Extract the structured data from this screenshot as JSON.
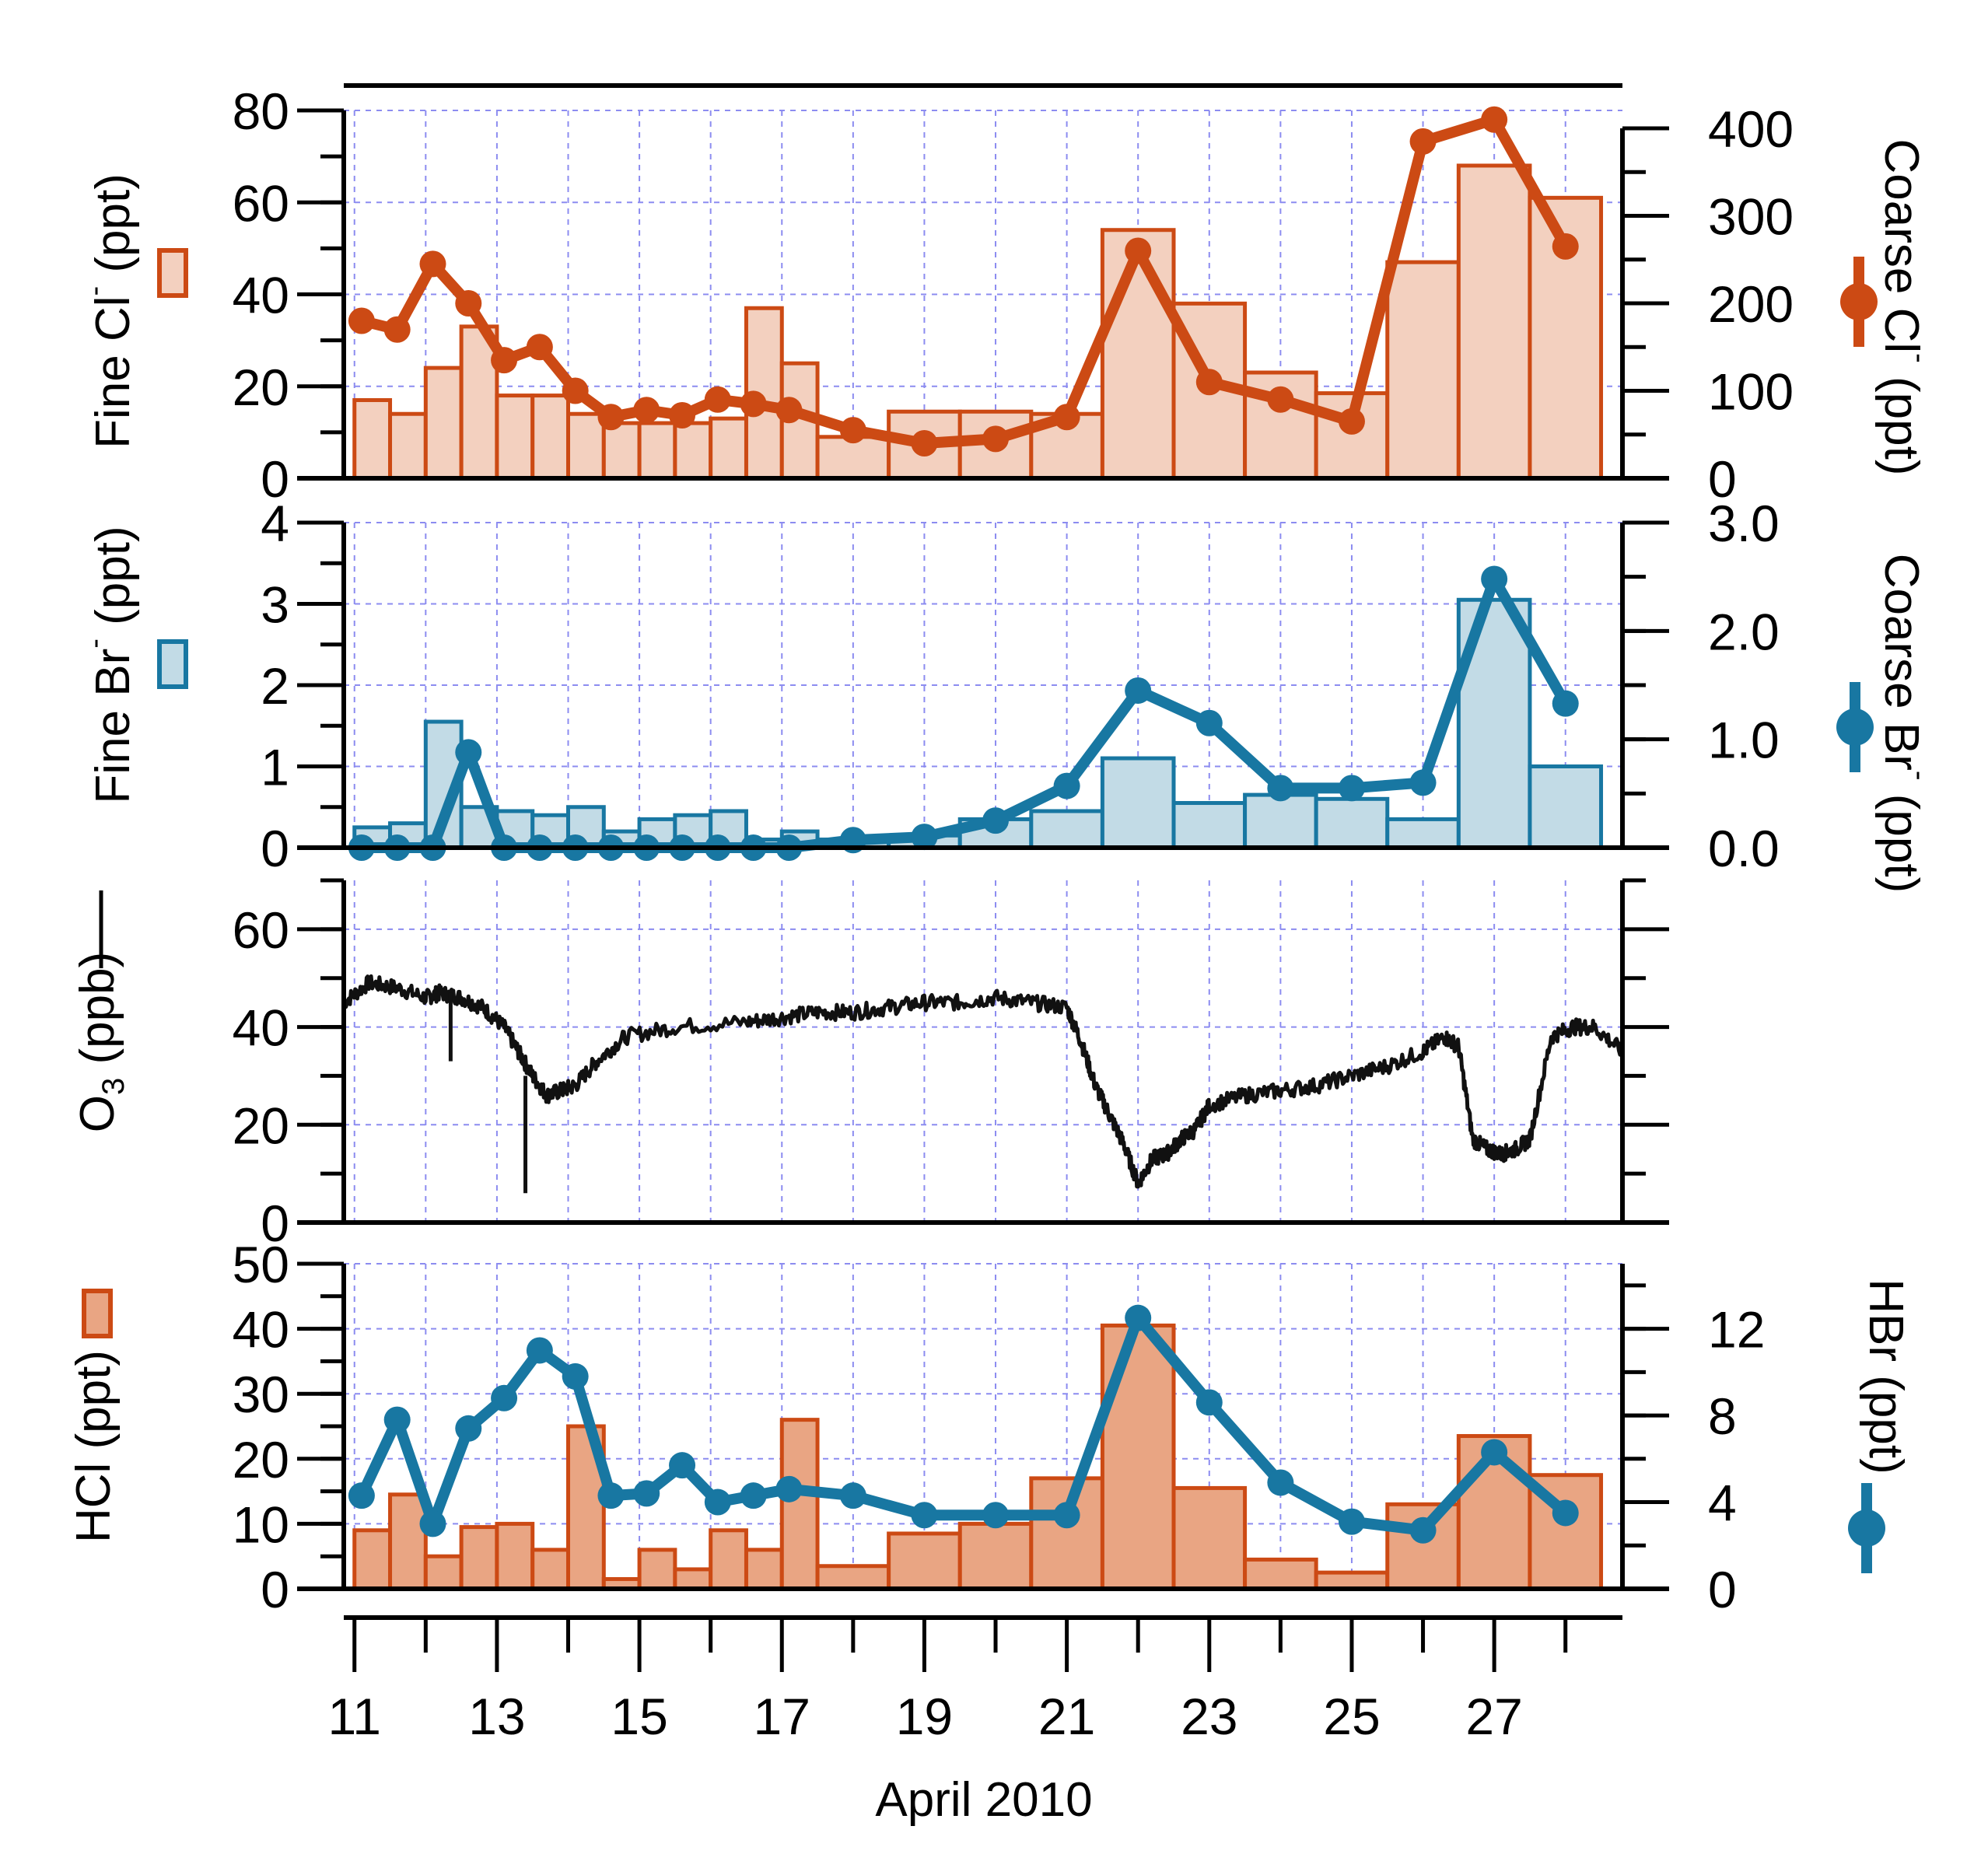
{
  "chart_data": {
    "type": "multi-panel",
    "xlabel": "April 2010",
    "x_ticks": [
      "11",
      "13",
      "15",
      "17",
      "19",
      "21",
      "23",
      "25",
      "27"
    ],
    "x_range": [
      10.85,
      28.8
    ],
    "colors": {
      "chloride": "#cc4a14",
      "chloride_fill": "#f3d0bf",
      "hcl_fill": "#e9a583",
      "bromide": "#1877a2",
      "bromide_fill": "#c2dbe6",
      "ozone": "#111111",
      "grid": "#8c8cf0"
    },
    "panels": [
      {
        "id": "chloride",
        "left_axis": {
          "label": "Fine Cl",
          "sup": "-",
          "unit": " (ppt)",
          "ylim": [
            0,
            80
          ],
          "ticks": [
            "0",
            "20",
            "40",
            "60",
            "80"
          ]
        },
        "right_axis": {
          "label": "Coarse Cl",
          "sup": "-",
          "unit": " (ppt)",
          "ylim": [
            0,
            400
          ],
          "ticks": [
            "0",
            "100",
            "200",
            "300",
            "400"
          ]
        },
        "bars": {
          "name": "Fine Cl-",
          "edges": [
            11.0,
            11.5,
            12.0,
            12.5,
            13.0,
            13.5,
            14.0,
            14.5,
            15.0,
            15.5,
            16.0,
            16.5,
            17.0,
            17.5,
            18.5,
            19.5,
            20.5,
            21.5,
            22.5,
            23.5,
            24.5,
            25.5,
            26.5,
            27.5,
            28.5
          ],
          "values": [
            17,
            14,
            24,
            33,
            18,
            18,
            14,
            12,
            12,
            12,
            13,
            37,
            25,
            9,
            14.5,
            14.5,
            14,
            54,
            38,
            23,
            18.5,
            47,
            68,
            61
          ]
        },
        "line": {
          "name": "Coarse Cl-",
          "x": [
            11.1,
            11.6,
            12.1,
            12.6,
            13.1,
            13.6,
            14.1,
            14.6,
            15.1,
            15.6,
            16.1,
            16.6,
            17.1,
            18.0,
            19.0,
            20.0,
            21.0,
            22.0,
            23.0,
            24.0,
            25.0,
            26.0,
            27.0,
            28.0
          ],
          "values": [
            180,
            170,
            245,
            200,
            135,
            150,
            100,
            70,
            78,
            72,
            90,
            85,
            78,
            55,
            40,
            45,
            70,
            260,
            110,
            90,
            65,
            385,
            410,
            265
          ]
        }
      },
      {
        "id": "bromide",
        "left_axis": {
          "label": "Fine Br",
          "sup": "-",
          "unit": " (ppt)",
          "ylim": [
            0,
            4
          ],
          "ticks": [
            "0",
            "1",
            "2",
            "3",
            "4"
          ]
        },
        "right_axis": {
          "label": "Coarse Br",
          "sup": "-",
          "unit": " (ppt)",
          "ylim": [
            0,
            3
          ],
          "ticks": [
            "0.0",
            "1.0",
            "2.0",
            "3.0"
          ]
        },
        "bars": {
          "name": "Fine Br-",
          "edges": [
            11.0,
            11.5,
            12.0,
            12.5,
            13.0,
            13.5,
            14.0,
            14.5,
            15.0,
            15.5,
            16.0,
            16.5,
            17.0,
            17.5,
            18.5,
            19.5,
            20.5,
            21.5,
            22.5,
            23.5,
            24.5,
            25.5,
            26.5,
            27.5,
            28.5
          ],
          "values": [
            0.25,
            0.3,
            1.55,
            0.5,
            0.45,
            0.4,
            0.5,
            0.2,
            0.35,
            0.4,
            0.45,
            0.1,
            0.2,
            0.1,
            0.15,
            0.35,
            0.45,
            1.1,
            0.55,
            0.65,
            0.6,
            0.35,
            3.05,
            1.0
          ]
        },
        "line": {
          "name": "Coarse Br-",
          "x": [
            11.1,
            11.6,
            12.1,
            12.6,
            13.1,
            13.6,
            14.1,
            14.6,
            15.1,
            15.6,
            16.1,
            16.6,
            17.1,
            18.0,
            19.0,
            20.0,
            21.0,
            22.0,
            23.0,
            24.0,
            25.0,
            26.0,
            27.0,
            28.0
          ],
          "values": [
            0.0,
            0.0,
            0.0,
            0.88,
            0.0,
            0.0,
            0.0,
            0.0,
            0.0,
            0.0,
            0.0,
            0.0,
            0.0,
            0.07,
            0.1,
            0.25,
            0.57,
            1.45,
            1.15,
            0.55,
            0.55,
            0.6,
            2.48,
            1.33
          ]
        }
      },
      {
        "id": "ozone",
        "left_axis": {
          "label": "O",
          "sub": "3",
          "unit": " (ppb)",
          "ylim": [
            0,
            70
          ],
          "ticks": [
            "0",
            "20",
            "40",
            "60"
          ]
        },
        "line_series": {
          "name": "O3",
          "x": [
            10.85,
            11.2,
            11.6,
            12.0,
            12.2,
            12.5,
            12.8,
            13.1,
            13.3,
            13.5,
            13.7,
            13.9,
            14.1,
            14.4,
            14.8,
            15.5,
            16.5,
            17.0,
            17.5,
            18.0,
            18.5,
            19.0,
            19.5,
            20.0,
            20.5,
            21.0,
            21.2,
            21.4,
            21.6,
            21.8,
            22.0,
            22.2,
            22.4,
            22.6,
            22.8,
            23.0,
            23.5,
            24.0,
            24.5,
            25.0,
            25.5,
            26.0,
            26.3,
            26.5,
            26.7,
            26.9,
            27.1,
            27.3,
            27.5,
            27.8,
            28.1,
            28.4,
            28.8
          ],
          "values": [
            45,
            49,
            48,
            46,
            47,
            46,
            44,
            40,
            35,
            30,
            26,
            27,
            28,
            33,
            38,
            40,
            41,
            42,
            43,
            43,
            44,
            45,
            45,
            46,
            45,
            44,
            37,
            28,
            22,
            16,
            8,
            13,
            14,
            17,
            19,
            24,
            26,
            27,
            28,
            30,
            32,
            35,
            38,
            36,
            17,
            15,
            14,
            15,
            17,
            38,
            40,
            40,
            35
          ]
        },
        "dips": [
          {
            "x": 12.35,
            "values": [
              47,
              33
            ]
          },
          {
            "x": 13.4,
            "values": [
              30,
              6
            ]
          }
        ]
      },
      {
        "id": "hcl_hbr",
        "left_axis": {
          "label": "HCl",
          "unit": " (ppt)",
          "ylim": [
            0,
            50
          ],
          "ticks": [
            "0",
            "10",
            "20",
            "30",
            "40",
            "50"
          ]
        },
        "right_axis": {
          "label": "HBr",
          "unit": " (ppt)",
          "ylim": [
            0,
            15
          ],
          "ticks": [
            "0",
            "4",
            "8",
            "12"
          ]
        },
        "bars": {
          "name": "HCl",
          "edges": [
            11.0,
            11.5,
            12.0,
            12.5,
            13.0,
            13.5,
            14.0,
            14.5,
            15.0,
            15.5,
            16.0,
            16.5,
            17.0,
            17.5,
            18.5,
            19.5,
            20.5,
            21.5,
            22.5,
            23.5,
            24.5,
            25.5,
            26.5,
            27.5,
            28.5
          ],
          "values": [
            9,
            14.5,
            5,
            9.5,
            10,
            6,
            25,
            1.5,
            6,
            3,
            9,
            6,
            26,
            3.5,
            8.5,
            10,
            17,
            40.5,
            15.5,
            4.5,
            2.5,
            13,
            23.5,
            17.5
          ]
        },
        "line": {
          "name": "HBr",
          "x": [
            11.1,
            11.6,
            12.1,
            12.6,
            13.1,
            13.6,
            14.1,
            14.6,
            15.1,
            15.6,
            16.1,
            16.6,
            17.1,
            18.0,
            19.0,
            20.0,
            21.0,
            22.0,
            23.0,
            24.0,
            25.0,
            26.0,
            27.0,
            28.0
          ],
          "values": [
            4.3,
            7.8,
            3.0,
            7.4,
            8.8,
            11.0,
            9.8,
            4.3,
            4.4,
            5.7,
            4.0,
            4.3,
            4.6,
            4.3,
            3.4,
            3.4,
            3.4,
            12.5,
            8.6,
            4.9,
            3.1,
            2.7,
            6.3,
            3.5
          ]
        }
      }
    ]
  }
}
